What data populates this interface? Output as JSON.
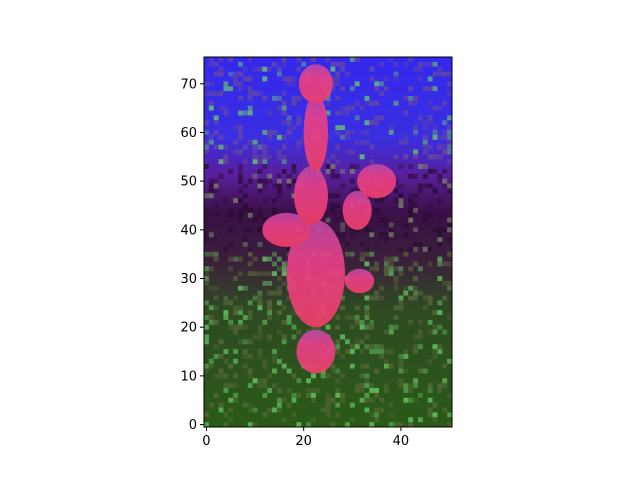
{
  "chart_data": {
    "type": "heatmap",
    "title": "",
    "xlabel": "",
    "ylabel": "",
    "image_width": 51,
    "image_height": 76,
    "x_ticks": [
      0,
      20,
      40
    ],
    "y_ticks": [
      0,
      10,
      20,
      30,
      40,
      50,
      60,
      70
    ],
    "xlim": [
      -0.5,
      50.5
    ],
    "ylim": [
      75.5,
      -0.5
    ],
    "y_axis_inverted": true,
    "grid": false,
    "legend": "none",
    "colors": {
      "top_band": "#3a2ee8",
      "middle_band": "#4a1a6a",
      "bottom_band": "#2f5a1c",
      "figure": "#e8407a",
      "speckle": "#6ad06a"
    }
  },
  "x_tick_labels": [
    "0",
    "20",
    "40"
  ],
  "y_tick_labels": [
    "0",
    "10",
    "20",
    "30",
    "40",
    "50",
    "60",
    "70"
  ]
}
